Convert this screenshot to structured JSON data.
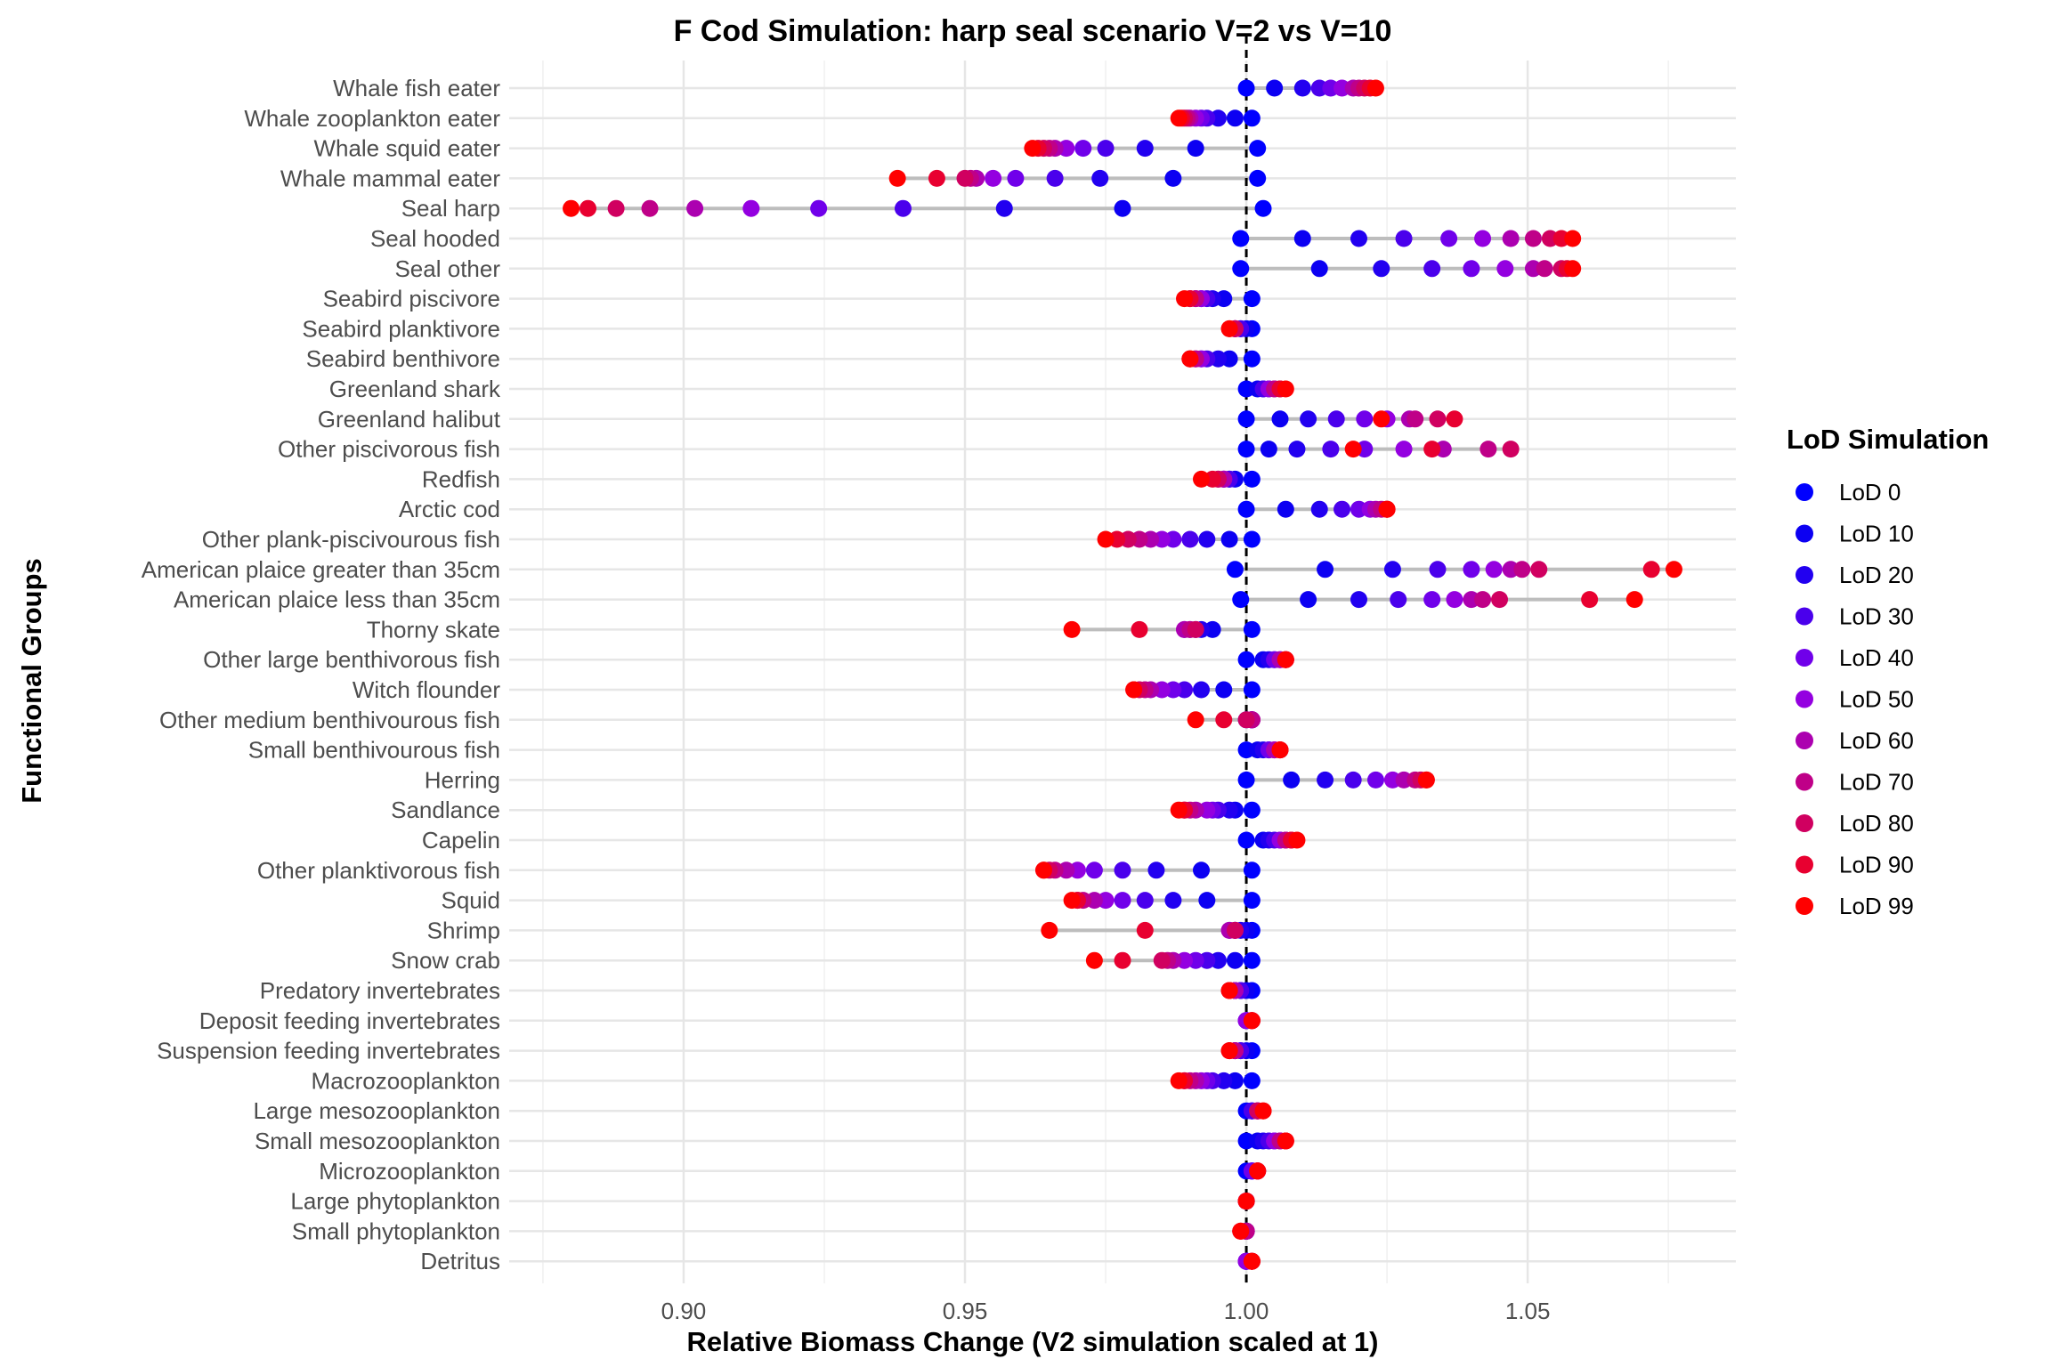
{
  "chart_data": {
    "type": "scatter",
    "title": "F Cod Simulation: harp seal scenario V=2 vs V=10",
    "xlabel": "Relative Biomass Change (V2 simulation scaled at 1)",
    "ylabel": "Functional Groups",
    "xlim": [
      0.869,
      1.087
    ],
    "x_ticks": [
      0.9,
      0.95,
      1.0,
      1.05
    ],
    "x_tick_labels": [
      "0.90",
      "0.95",
      "1.00",
      "1.05"
    ],
    "reference_line": 1.0,
    "grid": true,
    "legend_position": "right",
    "legend_title": "LoD Simulation",
    "series": [
      {
        "name": "LoD 0",
        "color": "#0000ff"
      },
      {
        "name": "LoD 10",
        "color": "#0c00f2"
      },
      {
        "name": "LoD 20",
        "color": "#2200f0"
      },
      {
        "name": "LoD 30",
        "color": "#4a00ec"
      },
      {
        "name": "LoD 40",
        "color": "#7000ea"
      },
      {
        "name": "LoD 50",
        "color": "#9400e0"
      },
      {
        "name": "LoD 60",
        "color": "#ac00b0"
      },
      {
        "name": "LoD 70",
        "color": "#bf0088"
      },
      {
        "name": "LoD 80",
        "color": "#d00060"
      },
      {
        "name": "LoD 90",
        "color": "#e80030"
      },
      {
        "name": "LoD 99",
        "color": "#ff0000"
      }
    ],
    "categories": [
      "Whale fish eater",
      "Whale zooplankton eater",
      "Whale squid eater",
      "Whale mammal eater",
      "Seal harp",
      "Seal hooded",
      "Seal other",
      "Seabird piscivore",
      "Seabird planktivore",
      "Seabird benthivore",
      "Greenland shark",
      "Greenland halibut",
      "Other piscivorous fish",
      "Redfish",
      "Arctic cod",
      "Other plank-piscivourous fish",
      "American plaice greater than 35cm",
      "American plaice less than 35cm",
      "Thorny skate",
      "Other large benthivorous fish",
      "Witch flounder",
      "Other medium benthivourous fish",
      "Small benthivourous fish",
      "Herring",
      "Sandlance",
      "Capelin",
      "Other planktivorous fish",
      "Squid",
      "Shrimp",
      "Snow crab",
      "Predatory invertebrates",
      "Deposit feeding invertebrates",
      "Suspension feeding invertebrates",
      "Macrozooplankton",
      "Large mesozooplankton",
      "Small mesozooplankton",
      "Microzooplankton",
      "Large phytoplankton",
      "Small phytoplankton",
      "Detritus"
    ],
    "values": [
      [
        1.0,
        1.005,
        1.01,
        1.013,
        1.015,
        1.017,
        1.019,
        1.02,
        1.021,
        1.022,
        1.023
      ],
      [
        1.001,
        0.998,
        0.995,
        0.993,
        0.992,
        0.991,
        0.99,
        0.9895,
        0.989,
        0.9885,
        0.988
      ],
      [
        1.002,
        0.991,
        0.982,
        0.975,
        0.971,
        0.968,
        0.966,
        0.965,
        0.964,
        0.963,
        0.962
      ],
      [
        1.002,
        0.987,
        0.974,
        0.966,
        0.959,
        0.955,
        0.952,
        0.951,
        0.95,
        0.945,
        0.938
      ],
      [
        1.003,
        0.978,
        0.957,
        0.939,
        0.924,
        0.912,
        0.902,
        0.894,
        0.888,
        0.883,
        0.88
      ],
      [
        0.999,
        1.01,
        1.02,
        1.028,
        1.036,
        1.042,
        1.047,
        1.051,
        1.054,
        1.056,
        1.058
      ],
      [
        0.999,
        1.013,
        1.024,
        1.033,
        1.04,
        1.046,
        1.051,
        1.053,
        1.056,
        1.057,
        1.058
      ],
      [
        1.001,
        0.996,
        0.994,
        0.993,
        0.992,
        0.992,
        0.991,
        0.991,
        0.99,
        0.99,
        0.989
      ],
      [
        1.001,
        1.0,
        0.999,
        0.999,
        0.998,
        0.998,
        0.998,
        0.998,
        0.998,
        0.997,
        0.997
      ],
      [
        1.001,
        0.997,
        0.995,
        0.993,
        0.992,
        0.992,
        0.991,
        0.991,
        0.99,
        0.99,
        0.99
      ],
      [
        1.0,
        1.002,
        1.003,
        1.003,
        1.004,
        1.004,
        1.005,
        1.005,
        1.006,
        1.006,
        1.007
      ],
      [
        1.0,
        1.006,
        1.011,
        1.016,
        1.021,
        1.025,
        1.029,
        1.03,
        1.034,
        1.037,
        1.024
      ],
      [
        1.0,
        1.004,
        1.009,
        1.015,
        1.021,
        1.028,
        1.035,
        1.043,
        1.047,
        1.033,
        1.019
      ],
      [
        1.001,
        0.998,
        0.997,
        0.997,
        0.996,
        0.996,
        0.996,
        0.995,
        0.995,
        0.994,
        0.992
      ],
      [
        1.0,
        1.007,
        1.013,
        1.017,
        1.02,
        1.022,
        1.023,
        1.024,
        1.025,
        1.025,
        1.025
      ],
      [
        1.001,
        0.997,
        0.993,
        0.99,
        0.987,
        0.985,
        0.983,
        0.981,
        0.979,
        0.977,
        0.975
      ],
      [
        0.998,
        1.014,
        1.026,
        1.034,
        1.04,
        1.044,
        1.047,
        1.049,
        1.052,
        1.072,
        1.076
      ],
      [
        0.999,
        1.011,
        1.02,
        1.027,
        1.033,
        1.037,
        1.04,
        1.042,
        1.045,
        1.061,
        1.069
      ],
      [
        1.001,
        0.994,
        0.992,
        0.991,
        0.99,
        0.989,
        0.989,
        0.99,
        0.991,
        0.981,
        0.969
      ],
      [
        1.0,
        1.003,
        1.004,
        1.005,
        1.005,
        1.006,
        1.006,
        1.007,
        1.007,
        1.007,
        1.007
      ],
      [
        1.001,
        0.996,
        0.992,
        0.989,
        0.987,
        0.985,
        0.983,
        0.982,
        0.981,
        0.98,
        0.98
      ],
      [
        1.0,
        1.001,
        1.001,
        1.001,
        1.001,
        1.001,
        1.001,
        1.001,
        1.0,
        0.996,
        0.991
      ],
      [
        1.0,
        1.002,
        1.003,
        1.004,
        1.004,
        1.005,
        1.005,
        1.006,
        1.006,
        1.006,
        1.006
      ],
      [
        1.0,
        1.008,
        1.014,
        1.019,
        1.023,
        1.026,
        1.028,
        1.03,
        1.031,
        1.032,
        1.032
      ],
      [
        1.001,
        0.998,
        0.997,
        0.995,
        0.994,
        0.993,
        0.991,
        0.99,
        0.989,
        0.989,
        0.988
      ],
      [
        1.0,
        1.003,
        1.004,
        1.005,
        1.006,
        1.006,
        1.007,
        1.007,
        1.008,
        1.008,
        1.009
      ],
      [
        1.001,
        0.992,
        0.984,
        0.978,
        0.973,
        0.97,
        0.968,
        0.966,
        0.965,
        0.964,
        0.964
      ],
      [
        1.001,
        0.993,
        0.987,
        0.982,
        0.978,
        0.975,
        0.973,
        0.971,
        0.97,
        0.97,
        0.969
      ],
      [
        1.001,
        1.0,
        0.999,
        0.998,
        0.998,
        0.997,
        0.997,
        0.998,
        0.998,
        0.982,
        0.965
      ],
      [
        1.001,
        0.998,
        0.995,
        0.993,
        0.991,
        0.989,
        0.987,
        0.986,
        0.985,
        0.978,
        0.973
      ],
      [
        1.001,
        1.0,
        0.999,
        0.999,
        0.998,
        0.998,
        0.998,
        0.997,
        0.997,
        0.997,
        0.997
      ],
      [
        1.0,
        1.0,
        1.0,
        1.0,
        1.0,
        1.0,
        1.001,
        1.001,
        1.001,
        1.001,
        1.001
      ],
      [
        1.001,
        1.0,
        0.999,
        0.999,
        0.998,
        0.998,
        0.998,
        0.998,
        0.997,
        0.997,
        0.997
      ],
      [
        1.001,
        0.998,
        0.996,
        0.994,
        0.993,
        0.992,
        0.991,
        0.99,
        0.989,
        0.989,
        0.988
      ],
      [
        1.0,
        1.001,
        1.001,
        1.001,
        1.002,
        1.002,
        1.002,
        1.002,
        1.002,
        1.003,
        1.003
      ],
      [
        1.0,
        1.002,
        1.003,
        1.004,
        1.005,
        1.005,
        1.006,
        1.006,
        1.007,
        1.007,
        1.007
      ],
      [
        1.0,
        1.001,
        1.001,
        1.001,
        1.001,
        1.002,
        1.002,
        1.002,
        1.002,
        1.002,
        1.002
      ],
      [
        1.0,
        1.0,
        1.0,
        1.0,
        1.0,
        1.0,
        1.0,
        1.0,
        1.0,
        1.0,
        1.0
      ],
      [
        1.0,
        1.0,
        1.0,
        1.0,
        1.0,
        1.0,
        1.0,
        1.0,
        0.999,
        0.999,
        0.999
      ],
      [
        1.0,
        1.0,
        1.0,
        1.0,
        1.0,
        1.0,
        1.001,
        1.001,
        1.001,
        1.001,
        1.001
      ]
    ]
  }
}
